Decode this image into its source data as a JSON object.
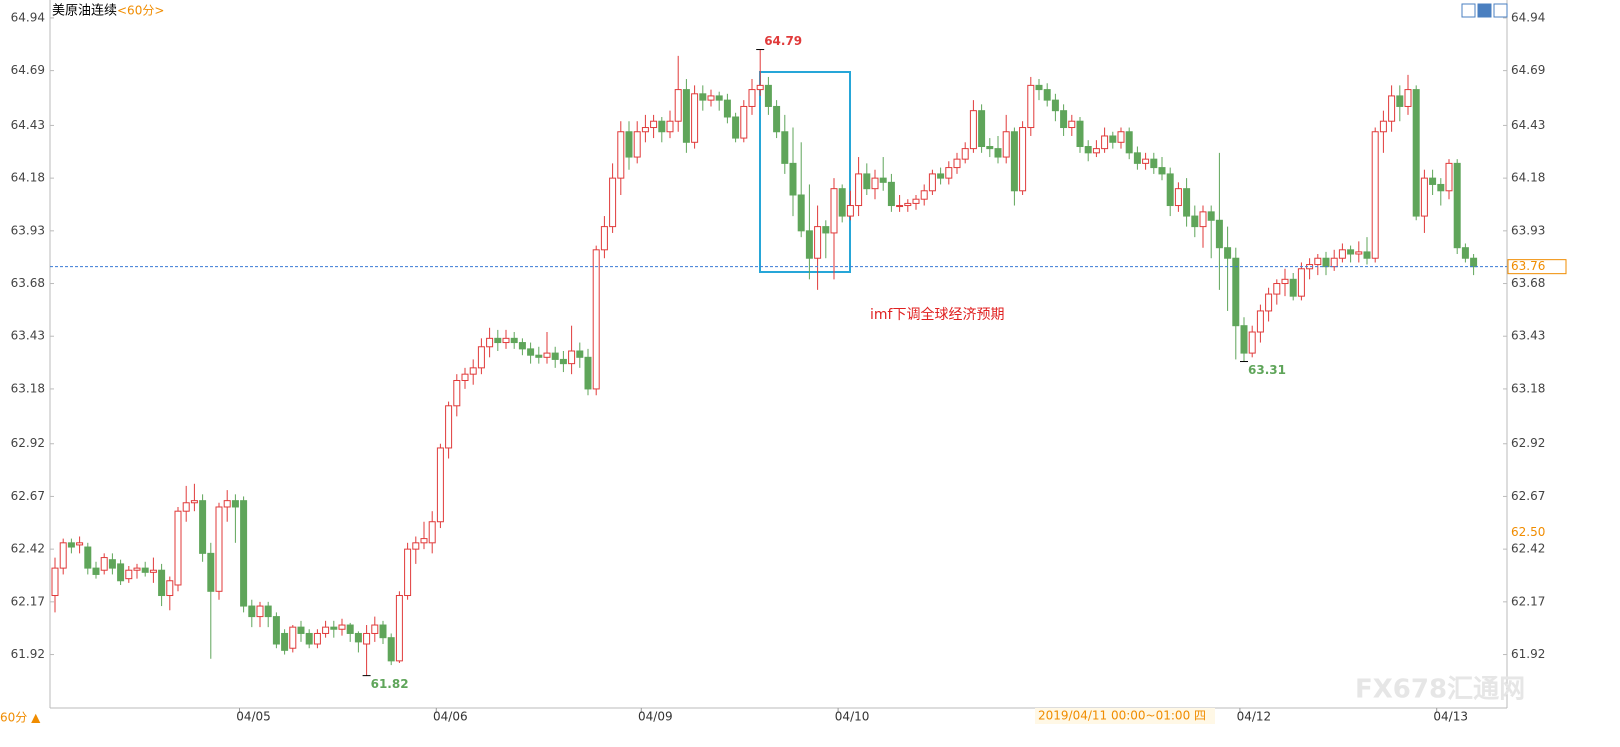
{
  "chart_data": {
    "type": "candlestick",
    "title": "美原油连续",
    "period": "<60分>",
    "period_footer": "60分 ▲",
    "annotation": "imf下调全球经济预期",
    "crosshair_label": "2019/04/11 00:00~01:00 四",
    "watermark": "FX678汇通网",
    "up_color": "#e03a3a",
    "down_color": "#5fa55a",
    "ylim": [
      61.6,
      65.025
    ],
    "yticks": [
      64.94,
      64.69,
      64.43,
      64.18,
      63.93,
      63.68,
      63.43,
      63.18,
      62.92,
      62.67,
      62.42,
      62.17,
      61.92
    ],
    "last_price": 63.76,
    "cursor_price": 62.5,
    "extremes": [
      {
        "candle": 86,
        "field": 1
      },
      {
        "candle": 145,
        "field": 2
      },
      {
        "candle": 38,
        "field": 2
      }
    ],
    "categories": [
      null,
      null,
      null,
      null,
      null,
      null,
      null,
      null,
      null,
      null,
      null,
      null,
      null,
      null,
      null,
      null,
      null,
      null,
      null,
      null,
      null,
      null,
      null,
      "04/05",
      null,
      null,
      null,
      null,
      null,
      null,
      null,
      null,
      null,
      null,
      null,
      null,
      null,
      null,
      null,
      null,
      null,
      null,
      null,
      null,
      null,
      null,
      null,
      "04/06",
      null,
      null,
      null,
      null,
      null,
      null,
      null,
      null,
      null,
      null,
      null,
      null,
      null,
      null,
      null,
      null,
      null,
      null,
      null,
      null,
      null,
      null,
      null,
      null,
      "04/09",
      null,
      null,
      null,
      null,
      null,
      null,
      null,
      null,
      null,
      null,
      null,
      null,
      null,
      null,
      null,
      null,
      null,
      null,
      null,
      null,
      null,
      null,
      null,
      "04/10",
      null,
      null,
      null,
      null,
      null,
      null,
      null,
      null,
      null,
      null,
      null,
      null,
      null,
      null,
      null,
      null,
      null,
      null,
      null,
      null,
      null,
      null,
      null,
      null,
      null,
      null,
      null,
      null,
      null,
      null,
      null,
      null,
      null,
      null,
      null,
      null,
      null,
      null,
      null,
      null,
      null,
      null,
      null,
      null,
      null,
      null,
      null,
      null,
      "04/12",
      null,
      null,
      null,
      null,
      null,
      null,
      null,
      null,
      null,
      null,
      null,
      null,
      null,
      null,
      null,
      null,
      null,
      null,
      null,
      null,
      null,
      null,
      null,
      "04/13",
      null,
      null,
      null,
      null
    ],
    "candles": [
      [
        62.2,
        62.38,
        62.12,
        62.33
      ],
      [
        62.33,
        62.47,
        62.3,
        62.45
      ],
      [
        62.45,
        62.47,
        62.4,
        62.43
      ],
      [
        62.44,
        62.48,
        62.4,
        62.45
      ],
      [
        62.43,
        62.45,
        62.3,
        62.33
      ],
      [
        62.33,
        62.36,
        62.28,
        62.3
      ],
      [
        62.32,
        62.4,
        62.3,
        62.38
      ],
      [
        62.37,
        62.4,
        62.3,
        62.33
      ],
      [
        62.35,
        62.37,
        62.25,
        62.27
      ],
      [
        62.28,
        62.34,
        62.26,
        62.32
      ],
      [
        62.32,
        62.35,
        62.28,
        62.33
      ],
      [
        62.33,
        62.36,
        62.29,
        62.31
      ],
      [
        62.31,
        62.38,
        62.26,
        62.32
      ],
      [
        62.32,
        62.35,
        62.15,
        62.2
      ],
      [
        62.2,
        62.29,
        62.13,
        62.27
      ],
      [
        62.25,
        62.62,
        62.22,
        62.6
      ],
      [
        62.6,
        62.72,
        62.55,
        62.64
      ],
      [
        62.64,
        62.73,
        62.6,
        62.65
      ],
      [
        62.65,
        62.68,
        62.36,
        62.4
      ],
      [
        62.4,
        62.45,
        61.9,
        62.22
      ],
      [
        62.22,
        62.64,
        62.18,
        62.62
      ],
      [
        62.62,
        62.7,
        62.55,
        62.65
      ],
      [
        62.65,
        62.68,
        62.45,
        62.62
      ],
      [
        62.65,
        62.67,
        62.12,
        62.15
      ],
      [
        62.15,
        62.18,
        62.05,
        62.1
      ],
      [
        62.1,
        62.17,
        62.05,
        62.15
      ],
      [
        62.15,
        62.17,
        62.05,
        62.1
      ],
      [
        62.1,
        62.12,
        61.95,
        61.97
      ],
      [
        62.02,
        62.04,
        61.92,
        61.94
      ],
      [
        61.95,
        62.06,
        61.93,
        62.05
      ],
      [
        62.05,
        62.08,
        61.98,
        62.02
      ],
      [
        62.02,
        62.04,
        61.95,
        61.97
      ],
      [
        61.97,
        62.04,
        61.95,
        62.02
      ],
      [
        62.02,
        62.08,
        62.0,
        62.05
      ],
      [
        62.05,
        62.08,
        62.0,
        62.04
      ],
      [
        62.04,
        62.09,
        62.01,
        62.06
      ],
      [
        62.06,
        62.07,
        61.98,
        62.02
      ],
      [
        62.02,
        62.03,
        61.93,
        61.98
      ],
      [
        61.97,
        62.06,
        61.82,
        62.02
      ],
      [
        62.02,
        62.1,
        61.98,
        62.06
      ],
      [
        62.06,
        62.08,
        61.97,
        62.0
      ],
      [
        62.0,
        62.02,
        61.87,
        61.89
      ],
      [
        61.89,
        62.22,
        61.88,
        62.2
      ],
      [
        62.2,
        62.45,
        62.18,
        62.42
      ],
      [
        62.42,
        62.48,
        62.35,
        62.45
      ],
      [
        62.45,
        62.55,
        62.42,
        62.47
      ],
      [
        62.45,
        62.6,
        62.4,
        62.55
      ],
      [
        62.55,
        62.92,
        62.52,
        62.9
      ],
      [
        62.9,
        63.12,
        62.85,
        63.1
      ],
      [
        63.1,
        63.25,
        63.05,
        63.22
      ],
      [
        63.22,
        63.28,
        63.18,
        63.25
      ],
      [
        63.25,
        63.32,
        63.2,
        63.28
      ],
      [
        63.28,
        63.42,
        63.25,
        63.38
      ],
      [
        63.38,
        63.47,
        63.33,
        63.42
      ],
      [
        63.42,
        63.46,
        63.36,
        63.4
      ],
      [
        63.4,
        63.46,
        63.37,
        63.42
      ],
      [
        63.42,
        63.45,
        63.37,
        63.4
      ],
      [
        63.4,
        63.42,
        63.34,
        63.37
      ],
      [
        63.37,
        63.4,
        63.3,
        63.34
      ],
      [
        63.34,
        63.38,
        63.3,
        63.33
      ],
      [
        63.33,
        63.45,
        63.3,
        63.35
      ],
      [
        63.35,
        63.38,
        63.28,
        63.32
      ],
      [
        63.32,
        63.36,
        63.26,
        63.3
      ],
      [
        63.3,
        63.48,
        63.25,
        63.36
      ],
      [
        63.36,
        63.4,
        63.28,
        63.33
      ],
      [
        63.33,
        63.37,
        63.15,
        63.18
      ],
      [
        63.18,
        63.86,
        63.15,
        63.84
      ],
      [
        63.84,
        64.0,
        63.8,
        63.95
      ],
      [
        63.95,
        64.25,
        63.92,
        64.18
      ],
      [
        64.18,
        64.45,
        64.1,
        64.4
      ],
      [
        64.4,
        64.45,
        64.22,
        64.28
      ],
      [
        64.28,
        64.45,
        64.25,
        64.4
      ],
      [
        64.4,
        64.48,
        64.35,
        64.42
      ],
      [
        64.42,
        64.48,
        64.37,
        64.45
      ],
      [
        64.45,
        64.47,
        64.35,
        64.4
      ],
      [
        64.4,
        64.5,
        64.37,
        64.45
      ],
      [
        64.45,
        64.76,
        64.4,
        64.6
      ],
      [
        64.6,
        64.65,
        64.3,
        64.35
      ],
      [
        64.35,
        64.62,
        64.32,
        64.58
      ],
      [
        64.58,
        64.62,
        64.5,
        64.55
      ],
      [
        64.55,
        64.6,
        64.52,
        64.57
      ],
      [
        64.57,
        64.59,
        64.5,
        64.55
      ],
      [
        64.55,
        64.58,
        64.44,
        64.47
      ],
      [
        64.47,
        64.49,
        64.35,
        64.37
      ],
      [
        64.37,
        64.55,
        64.35,
        64.52
      ],
      [
        64.52,
        64.65,
        64.48,
        64.6
      ],
      [
        64.6,
        64.79,
        64.57,
        64.62
      ],
      [
        64.62,
        64.66,
        64.48,
        64.52
      ],
      [
        64.52,
        64.55,
        64.37,
        64.4
      ],
      [
        64.4,
        64.48,
        64.2,
        64.25
      ],
      [
        64.25,
        64.42,
        64.0,
        64.1
      ],
      [
        64.1,
        64.35,
        63.9,
        63.93
      ],
      [
        63.93,
        64.15,
        63.7,
        63.8
      ],
      [
        63.8,
        64.05,
        63.65,
        63.95
      ],
      [
        63.95,
        63.98,
        63.8,
        63.92
      ],
      [
        63.92,
        64.18,
        63.7,
        64.13
      ],
      [
        64.13,
        64.15,
        63.97,
        64.0
      ],
      [
        64.0,
        64.12,
        63.98,
        64.05
      ],
      [
        64.05,
        64.28,
        64.0,
        64.2
      ],
      [
        64.2,
        64.25,
        64.1,
        64.13
      ],
      [
        64.13,
        64.22,
        64.08,
        64.18
      ],
      [
        64.18,
        64.28,
        64.12,
        64.16
      ],
      [
        64.16,
        64.2,
        64.02,
        64.05
      ],
      [
        64.05,
        64.1,
        64.02,
        64.05
      ],
      [
        64.05,
        64.08,
        64.02,
        64.06
      ],
      [
        64.06,
        64.1,
        64.03,
        64.08
      ],
      [
        64.08,
        64.15,
        64.05,
        64.12
      ],
      [
        64.12,
        64.22,
        64.1,
        64.2
      ],
      [
        64.2,
        64.23,
        64.15,
        64.18
      ],
      [
        64.18,
        64.26,
        64.15,
        64.23
      ],
      [
        64.23,
        64.3,
        64.2,
        64.27
      ],
      [
        64.27,
        64.35,
        64.25,
        64.32
      ],
      [
        64.32,
        64.55,
        64.3,
        64.5
      ],
      [
        64.5,
        64.53,
        64.3,
        64.33
      ],
      [
        64.33,
        64.37,
        64.28,
        64.32
      ],
      [
        64.32,
        64.38,
        64.25,
        64.28
      ],
      [
        64.28,
        64.48,
        64.25,
        64.4
      ],
      [
        64.4,
        64.42,
        64.05,
        64.12
      ],
      [
        64.12,
        64.45,
        64.1,
        64.42
      ],
      [
        64.42,
        64.66,
        64.38,
        64.62
      ],
      [
        64.62,
        64.65,
        64.55,
        64.6
      ],
      [
        64.6,
        64.63,
        64.52,
        64.55
      ],
      [
        64.55,
        64.58,
        64.45,
        64.5
      ],
      [
        64.5,
        64.53,
        64.38,
        64.42
      ],
      [
        64.42,
        64.48,
        64.38,
        64.45
      ],
      [
        64.45,
        64.47,
        64.3,
        64.33
      ],
      [
        64.33,
        64.36,
        64.26,
        64.3
      ],
      [
        64.3,
        64.36,
        64.28,
        64.32
      ],
      [
        64.32,
        64.42,
        64.3,
        64.38
      ],
      [
        64.38,
        64.4,
        64.32,
        64.35
      ],
      [
        64.35,
        64.42,
        64.32,
        64.4
      ],
      [
        64.4,
        64.42,
        64.27,
        64.3
      ],
      [
        64.3,
        64.33,
        64.22,
        64.25
      ],
      [
        64.25,
        64.3,
        64.22,
        64.27
      ],
      [
        64.27,
        64.3,
        64.2,
        64.23
      ],
      [
        64.23,
        64.28,
        64.17,
        64.2
      ],
      [
        64.2,
        64.23,
        64.0,
        64.05
      ],
      [
        64.05,
        64.16,
        64.02,
        64.13
      ],
      [
        64.13,
        64.18,
        63.95,
        64.0
      ],
      [
        64.0,
        64.05,
        63.9,
        63.95
      ],
      [
        63.95,
        64.05,
        63.85,
        64.02
      ],
      [
        64.02,
        64.05,
        63.8,
        63.98
      ],
      [
        63.98,
        64.3,
        63.65,
        63.85
      ],
      [
        63.85,
        63.95,
        63.55,
        63.8
      ],
      [
        63.8,
        63.85,
        63.32,
        63.48
      ],
      [
        63.48,
        63.52,
        63.31,
        63.35
      ],
      [
        63.35,
        63.48,
        63.33,
        63.45
      ],
      [
        63.45,
        63.58,
        63.4,
        63.55
      ],
      [
        63.55,
        63.66,
        63.5,
        63.63
      ],
      [
        63.63,
        63.7,
        63.58,
        63.68
      ],
      [
        63.68,
        63.75,
        63.62,
        63.7
      ],
      [
        63.7,
        63.73,
        63.6,
        63.62
      ],
      [
        63.62,
        63.78,
        63.6,
        63.75
      ],
      [
        63.75,
        63.8,
        63.7,
        63.77
      ],
      [
        63.77,
        63.82,
        63.72,
        63.8
      ],
      [
        63.8,
        63.83,
        63.72,
        63.76
      ],
      [
        63.76,
        63.84,
        63.74,
        63.8
      ],
      [
        63.8,
        63.87,
        63.78,
        63.84
      ],
      [
        63.84,
        63.86,
        63.78,
        63.82
      ],
      [
        63.82,
        63.88,
        63.78,
        63.83
      ],
      [
        63.83,
        63.9,
        63.77,
        63.8
      ],
      [
        63.8,
        64.42,
        63.78,
        64.4
      ],
      [
        64.4,
        64.5,
        64.3,
        64.45
      ],
      [
        64.45,
        64.62,
        64.4,
        64.57
      ],
      [
        64.57,
        64.62,
        64.45,
        64.52
      ],
      [
        64.52,
        64.67,
        64.48,
        64.6
      ],
      [
        64.6,
        64.62,
        63.98,
        64.0
      ],
      [
        64.0,
        64.22,
        63.92,
        64.18
      ],
      [
        64.18,
        64.22,
        64.1,
        64.15
      ],
      [
        64.15,
        64.18,
        64.05,
        64.12
      ],
      [
        64.12,
        64.27,
        64.08,
        64.25
      ],
      [
        64.25,
        64.27,
        63.82,
        63.85
      ],
      [
        63.85,
        63.87,
        63.78,
        63.8
      ],
      [
        63.8,
        63.82,
        63.72,
        63.76
      ]
    ]
  }
}
